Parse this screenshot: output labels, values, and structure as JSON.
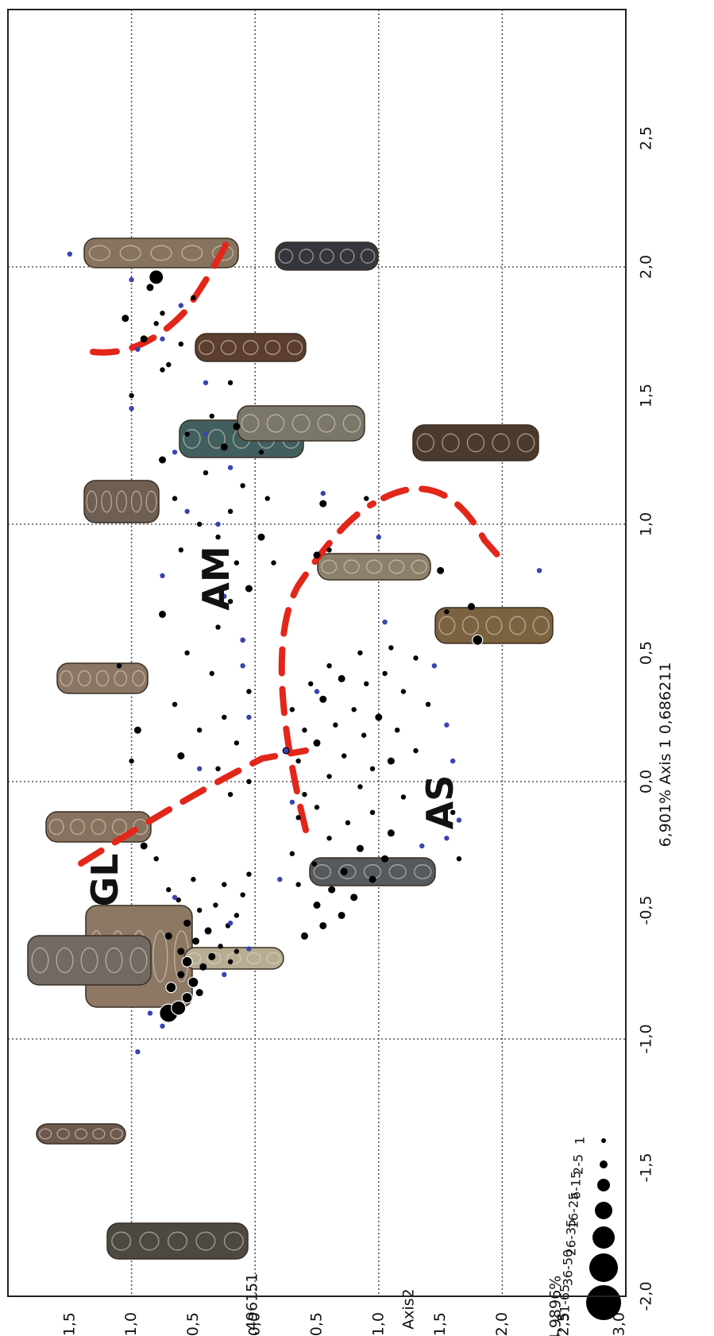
{
  "chart_data": {
    "type": "scatter",
    "orientation": "rotated-90-clockwise",
    "x_axis": {
      "label": "6,901% Axis 1 0,686211",
      "range": [
        -2.0,
        3.0
      ],
      "ticks": [
        "-2,0",
        "-1,5",
        "-1,0",
        "-0,5",
        "0,0",
        "0,5",
        "1,0",
        "1,5",
        "2,0",
        "2,5"
      ],
      "gridlines": [
        -1.0,
        0.0,
        1.0,
        2.0
      ]
    },
    "y_axis": {
      "label_left": "0,496151",
      "label_mid": "Axis2",
      "label_right": "4,9896%",
      "range": [
        -3.0,
        2.0
      ],
      "ticks": [
        "1,5",
        "1,0",
        "0,5",
        "0,0",
        "-0,5",
        "-1,0",
        "-1,5",
        "-2,0",
        "-2,5",
        "-3,0"
      ],
      "gridlines": [
        1.0,
        0.0,
        -1.0,
        -2.0
      ]
    },
    "grid": true,
    "groups": [
      "GL",
      "AM",
      "AS"
    ],
    "legend": {
      "placement": "bottom-left",
      "sizes": [
        "1",
        "2-5",
        "6-15",
        "16-25",
        "26-35",
        "36-50",
        "51-65"
      ]
    },
    "colors": {
      "points": "#000000",
      "highlight_points": "#3a44b0",
      "boundary": "#e3261a",
      "artifact_fill": "#8a7a66"
    },
    "series": [
      {
        "marker": "black",
        "points": [
          [
            -0.9,
            0.7,
            5
          ],
          [
            -0.88,
            0.62,
            4
          ],
          [
            -0.84,
            0.55,
            3
          ],
          [
            -0.8,
            0.68,
            3
          ],
          [
            -0.78,
            0.5,
            3
          ],
          [
            -0.82,
            0.45,
            2
          ],
          [
            -0.75,
            0.6,
            2
          ],
          [
            -0.72,
            0.42,
            2
          ],
          [
            -0.7,
            0.55,
            3
          ],
          [
            -0.68,
            0.35,
            2
          ],
          [
            -0.66,
            0.6,
            2
          ],
          [
            -0.64,
            0.28,
            1
          ],
          [
            -0.62,
            0.48,
            2
          ],
          [
            -0.6,
            0.7,
            2
          ],
          [
            -0.58,
            0.38,
            2
          ],
          [
            -0.56,
            0.22,
            1
          ],
          [
            -0.55,
            0.55,
            2
          ],
          [
            -0.52,
            0.15,
            1
          ],
          [
            -0.5,
            0.45,
            1
          ],
          [
            -0.48,
            0.32,
            1
          ],
          [
            -0.46,
            0.62,
            1
          ],
          [
            -0.44,
            0.1,
            1
          ],
          [
            -0.42,
            0.7,
            1
          ],
          [
            -0.4,
            0.25,
            1
          ],
          [
            -0.38,
            0.5,
            1
          ],
          [
            -0.36,
            0.05,
            1
          ],
          [
            -0.7,
            0.2,
            1
          ],
          [
            -0.66,
            0.15,
            1
          ],
          [
            -0.3,
            0.8,
            1
          ],
          [
            -0.25,
            0.9,
            2
          ],
          [
            -0.6,
            -0.4,
            2
          ],
          [
            -0.56,
            -0.55,
            2
          ],
          [
            -0.52,
            -0.7,
            2
          ],
          [
            -0.48,
            -0.5,
            2
          ],
          [
            -0.45,
            -0.8,
            2
          ],
          [
            -0.42,
            -0.62,
            2
          ],
          [
            -0.38,
            -0.95,
            2
          ],
          [
            -0.35,
            -0.72,
            2
          ],
          [
            -0.32,
            -0.48,
            1
          ],
          [
            -0.3,
            -1.05,
            2
          ],
          [
            -0.26,
            -0.85,
            2
          ],
          [
            -0.22,
            -0.6,
            1
          ],
          [
            -0.2,
            -1.1,
            2
          ],
          [
            -0.16,
            -0.75,
            1
          ],
          [
            -0.12,
            -0.95,
            1
          ],
          [
            -0.1,
            -0.5,
            1
          ],
          [
            -0.06,
            -1.2,
            1
          ],
          [
            -0.02,
            -0.85,
            1
          ],
          [
            -0.4,
            -0.35,
            1
          ],
          [
            -0.28,
            -0.3,
            1
          ],
          [
            -0.14,
            -0.35,
            1
          ],
          [
            -0.05,
            -0.4,
            1
          ],
          [
            0.02,
            -0.6,
            1
          ],
          [
            0.05,
            -0.95,
            1
          ],
          [
            0.08,
            -1.1,
            2
          ],
          [
            0.1,
            -0.72,
            1
          ],
          [
            0.12,
            -1.3,
            1
          ],
          [
            0.15,
            -0.5,
            2
          ],
          [
            0.18,
            -0.88,
            1
          ],
          [
            0.2,
            -1.15,
            1
          ],
          [
            0.22,
            -0.65,
            1
          ],
          [
            0.25,
            -1.0,
            2
          ],
          [
            0.28,
            -0.8,
            1
          ],
          [
            0.3,
            -1.4,
            1
          ],
          [
            0.32,
            -0.55,
            2
          ],
          [
            0.35,
            -1.2,
            1
          ],
          [
            0.38,
            -0.9,
            1
          ],
          [
            0.4,
            -0.7,
            2
          ],
          [
            0.42,
            -1.05,
            1
          ],
          [
            0.45,
            -0.6,
            1
          ],
          [
            0.48,
            -1.3,
            1
          ],
          [
            0.5,
            -0.85,
            1
          ],
          [
            0.52,
            -1.1,
            1
          ],
          [
            0.12,
            -0.25,
            2
          ],
          [
            0.2,
            -0.4,
            1
          ],
          [
            0.28,
            -0.3,
            1
          ],
          [
            0.38,
            -0.45,
            1
          ],
          [
            0.08,
            -0.35,
            1
          ],
          [
            -0.05,
            0.2,
            1
          ],
          [
            0.0,
            0.05,
            1
          ],
          [
            0.05,
            0.3,
            1
          ],
          [
            0.1,
            0.6,
            2
          ],
          [
            0.15,
            0.15,
            1
          ],
          [
            0.2,
            0.45,
            1
          ],
          [
            0.25,
            0.25,
            1
          ],
          [
            0.3,
            0.65,
            1
          ],
          [
            0.35,
            0.05,
            1
          ],
          [
            0.42,
            0.35,
            1
          ],
          [
            0.5,
            0.55,
            1
          ],
          [
            0.55,
            0.1,
            1
          ],
          [
            0.6,
            0.3,
            1
          ],
          [
            0.65,
            0.75,
            2
          ],
          [
            0.7,
            0.2,
            1
          ],
          [
            0.75,
            0.05,
            2
          ],
          [
            0.8,
            0.4,
            1
          ],
          [
            0.85,
            0.15,
            1
          ],
          [
            0.9,
            0.6,
            1
          ],
          [
            0.95,
            0.3,
            1
          ],
          [
            1.0,
            0.45,
            1
          ],
          [
            1.05,
            0.2,
            1
          ],
          [
            1.1,
            0.65,
            1
          ],
          [
            1.15,
            0.1,
            1
          ],
          [
            1.2,
            0.4,
            1
          ],
          [
            1.25,
            0.75,
            2
          ],
          [
            1.3,
            0.25,
            2
          ],
          [
            1.35,
            0.55,
            1
          ],
          [
            1.38,
            0.15,
            2
          ],
          [
            1.42,
            0.35,
            1
          ],
          [
            1.28,
            -0.05,
            1
          ],
          [
            1.1,
            -0.1,
            1
          ],
          [
            0.95,
            -0.05,
            2
          ],
          [
            0.85,
            -0.15,
            1
          ],
          [
            0.88,
            -0.5,
            2
          ],
          [
            1.08,
            -0.55,
            2
          ],
          [
            1.1,
            -0.9,
            1
          ],
          [
            0.9,
            -0.6,
            1
          ],
          [
            0.82,
            -1.5,
            2
          ],
          [
            0.66,
            -1.55,
            1
          ],
          [
            0.68,
            -1.75,
            2
          ],
          [
            0.55,
            -1.8,
            3
          ],
          [
            1.55,
            0.2,
            1
          ],
          [
            1.62,
            0.7,
            1
          ],
          [
            1.7,
            0.6,
            1
          ],
          [
            1.72,
            0.9,
            2
          ],
          [
            1.78,
            0.8,
            1
          ],
          [
            1.82,
            0.75,
            1
          ],
          [
            1.88,
            0.5,
            1
          ],
          [
            1.92,
            0.85,
            2
          ],
          [
            1.96,
            0.8,
            4
          ],
          [
            1.8,
            1.05,
            2
          ],
          [
            1.6,
            0.75,
            1
          ],
          [
            1.5,
            1.0,
            1
          ],
          [
            0.45,
            1.1,
            1
          ],
          [
            0.2,
            0.95,
            2
          ],
          [
            0.08,
            1.0,
            1
          ],
          [
            -0.3,
            -1.65,
            1
          ],
          [
            -0.12,
            -1.6,
            1
          ]
        ]
      },
      {
        "marker": "blue",
        "points": [
          [
            -1.05,
            0.95,
            1
          ],
          [
            -0.95,
            0.75,
            1
          ],
          [
            -0.9,
            0.85,
            1
          ],
          [
            -0.75,
            0.25,
            1
          ],
          [
            -0.65,
            0.05,
            1
          ],
          [
            -0.55,
            0.2,
            1
          ],
          [
            -0.45,
            0.65,
            1
          ],
          [
            -0.38,
            -0.2,
            1
          ],
          [
            -0.25,
            -1.35,
            1
          ],
          [
            -0.22,
            -1.55,
            1
          ],
          [
            -0.15,
            -1.65,
            1
          ],
          [
            0.08,
            -1.6,
            1
          ],
          [
            0.22,
            -1.55,
            1
          ],
          [
            0.45,
            -1.45,
            1
          ],
          [
            0.12,
            -0.25,
            1
          ],
          [
            0.25,
            0.05,
            1
          ],
          [
            0.35,
            -0.5,
            1
          ],
          [
            0.45,
            0.1,
            1
          ],
          [
            0.55,
            0.1,
            1
          ],
          [
            0.62,
            -1.05,
            1
          ],
          [
            0.72,
            0.25,
            1
          ],
          [
            0.8,
            0.75,
            1
          ],
          [
            0.82,
            -2.3,
            1
          ],
          [
            0.95,
            -1.0,
            1
          ],
          [
            1.0,
            0.3,
            1
          ],
          [
            1.05,
            0.55,
            1
          ],
          [
            1.12,
            -0.55,
            1
          ],
          [
            1.22,
            0.2,
            1
          ],
          [
            1.28,
            0.65,
            1
          ],
          [
            1.35,
            0.4,
            1
          ],
          [
            1.45,
            1.0,
            1
          ],
          [
            1.55,
            0.4,
            1
          ],
          [
            1.68,
            0.95,
            1
          ],
          [
            1.72,
            0.75,
            1
          ],
          [
            1.85,
            0.6,
            1
          ],
          [
            1.95,
            1.0,
            1
          ],
          [
            2.05,
            1.5,
            1
          ],
          [
            0.05,
            0.45,
            1
          ],
          [
            -0.08,
            -0.3,
            1
          ]
        ]
      }
    ],
    "boundaries": [
      "GL / AM-AS boundary",
      "AM / AS boundary",
      "upper-right cluster boundary",
      "lower-right outlier boundary"
    ],
    "artifacts": [
      {
        "type": "strap-end",
        "pattern": "openwork"
      },
      {
        "type": "strap-end",
        "pattern": "openwork"
      },
      {
        "type": "strap-end",
        "pattern": "openwork grid"
      },
      {
        "type": "strap-end",
        "pattern": "zoomorphic"
      },
      {
        "type": "strap-end",
        "pattern": "openwork scroll"
      },
      {
        "type": "strap-end",
        "pattern": "openwork"
      },
      {
        "type": "strap-end",
        "pattern": "scroll"
      },
      {
        "type": "strap-end",
        "pattern": "scroll"
      },
      {
        "type": "strap-end",
        "pattern": "interlace"
      },
      {
        "type": "strap-end",
        "pattern": "scroll"
      },
      {
        "type": "strap-end",
        "pattern": "zoomorphic"
      },
      {
        "type": "strap-end",
        "pattern": "scroll"
      },
      {
        "type": "strap-end",
        "pattern": "scroll"
      },
      {
        "type": "strap-end",
        "pattern": "zoomorphic"
      },
      {
        "type": "strap-end",
        "pattern": "scroll"
      },
      {
        "type": "strap-end",
        "pattern": "scroll"
      }
    ]
  }
}
